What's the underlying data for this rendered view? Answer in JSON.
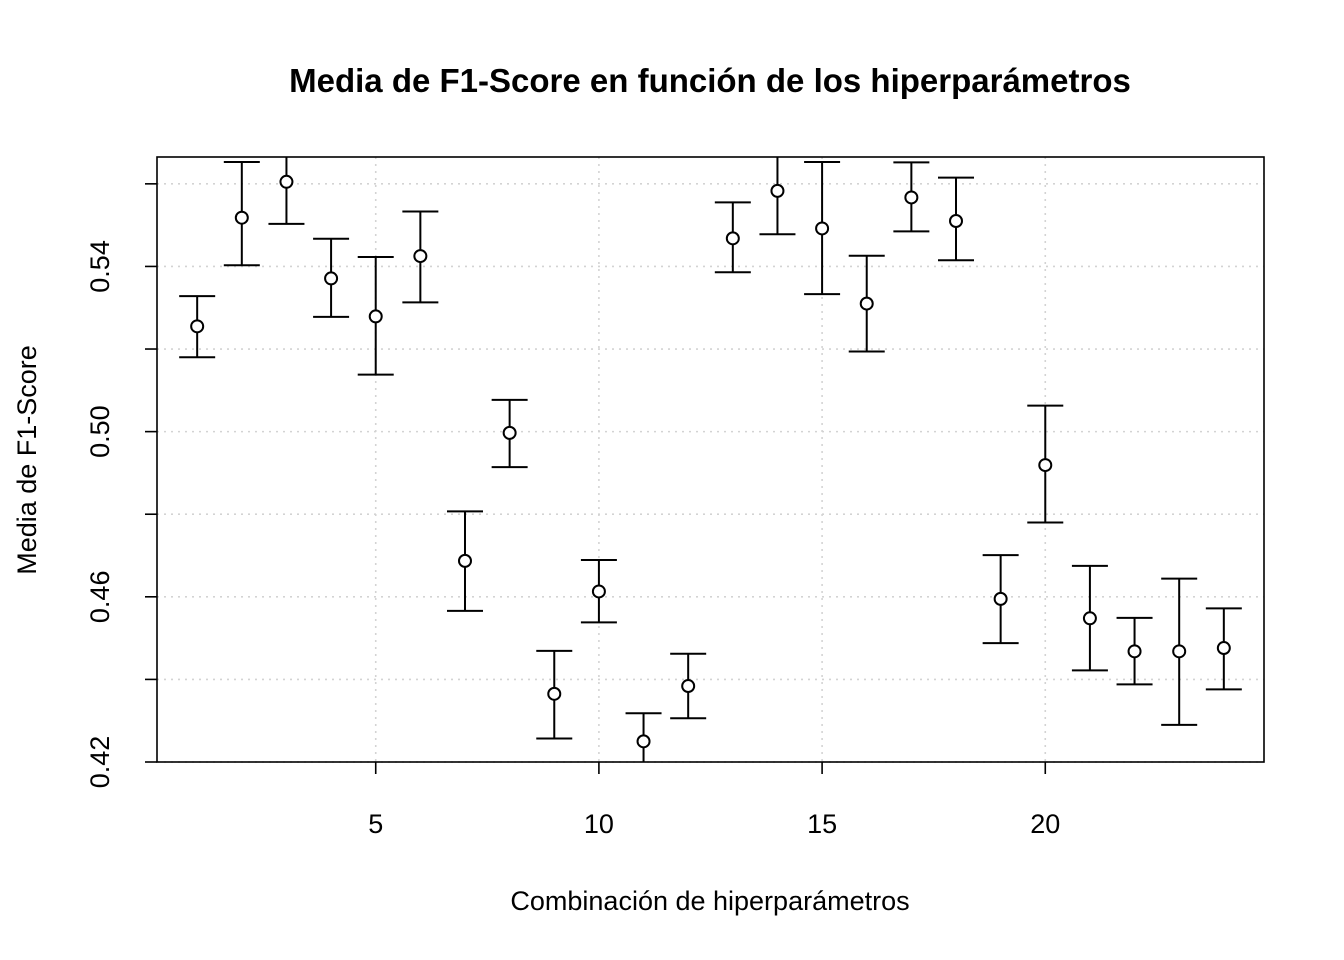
{
  "chart_data": {
    "type": "scatter",
    "title": "Media de F1-Score en función de los hiperparámetros",
    "xlabel": "Combinación de hiperparámetros",
    "ylabel": "Media de F1-Score",
    "xlim": [
      0.1,
      24.9
    ],
    "ylim": [
      0.42,
      0.5665
    ],
    "x_ticks": [
      5,
      10,
      15,
      20
    ],
    "x_tick_labels": [
      "5",
      "10",
      "15",
      "20"
    ],
    "y_ticks": [
      0.42,
      0.44,
      0.46,
      0.48,
      0.5,
      0.52,
      0.54,
      0.56
    ],
    "y_tick_labels": [
      "0.42",
      "",
      "0.46",
      "",
      "0.50",
      "",
      "0.54",
      ""
    ],
    "grid": true,
    "series": [
      {
        "marker": "open-circle",
        "error_bars": true,
        "x": [
          1,
          2,
          3,
          4,
          5,
          6,
          7,
          8,
          9,
          10,
          11,
          12,
          13,
          14,
          15,
          16,
          17,
          18,
          19,
          20,
          21,
          22,
          23,
          24
        ],
        "values": [
          0.5255,
          0.5518,
          0.5605,
          0.5371,
          0.5279,
          0.5425,
          0.4687,
          0.4997,
          0.4365,
          0.4613,
          0.425,
          0.4384,
          0.5468,
          0.5583,
          0.5492,
          0.531,
          0.5567,
          0.551,
          0.4595,
          0.4919,
          0.4548,
          0.4468,
          0.4468,
          0.4476
        ],
        "lower": [
          0.518,
          0.5403,
          0.5503,
          0.5278,
          0.5138,
          0.5313,
          0.4566,
          0.4914,
          0.4257,
          0.4538,
          0.4191,
          0.4306,
          0.5386,
          0.5478,
          0.5333,
          0.5194,
          0.5485,
          0.5415,
          0.4488,
          0.478,
          0.4422,
          0.4388,
          0.429,
          0.4376
        ],
        "upper": [
          0.5328,
          0.5653,
          0.569,
          0.5467,
          0.5423,
          0.5533,
          0.4807,
          0.5077,
          0.4469,
          0.4689,
          0.4318,
          0.4462,
          0.5555,
          0.569,
          0.5653,
          0.5426,
          0.5652,
          0.5615,
          0.4701,
          0.5063,
          0.4675,
          0.4549,
          0.4644,
          0.4572
        ]
      }
    ]
  }
}
